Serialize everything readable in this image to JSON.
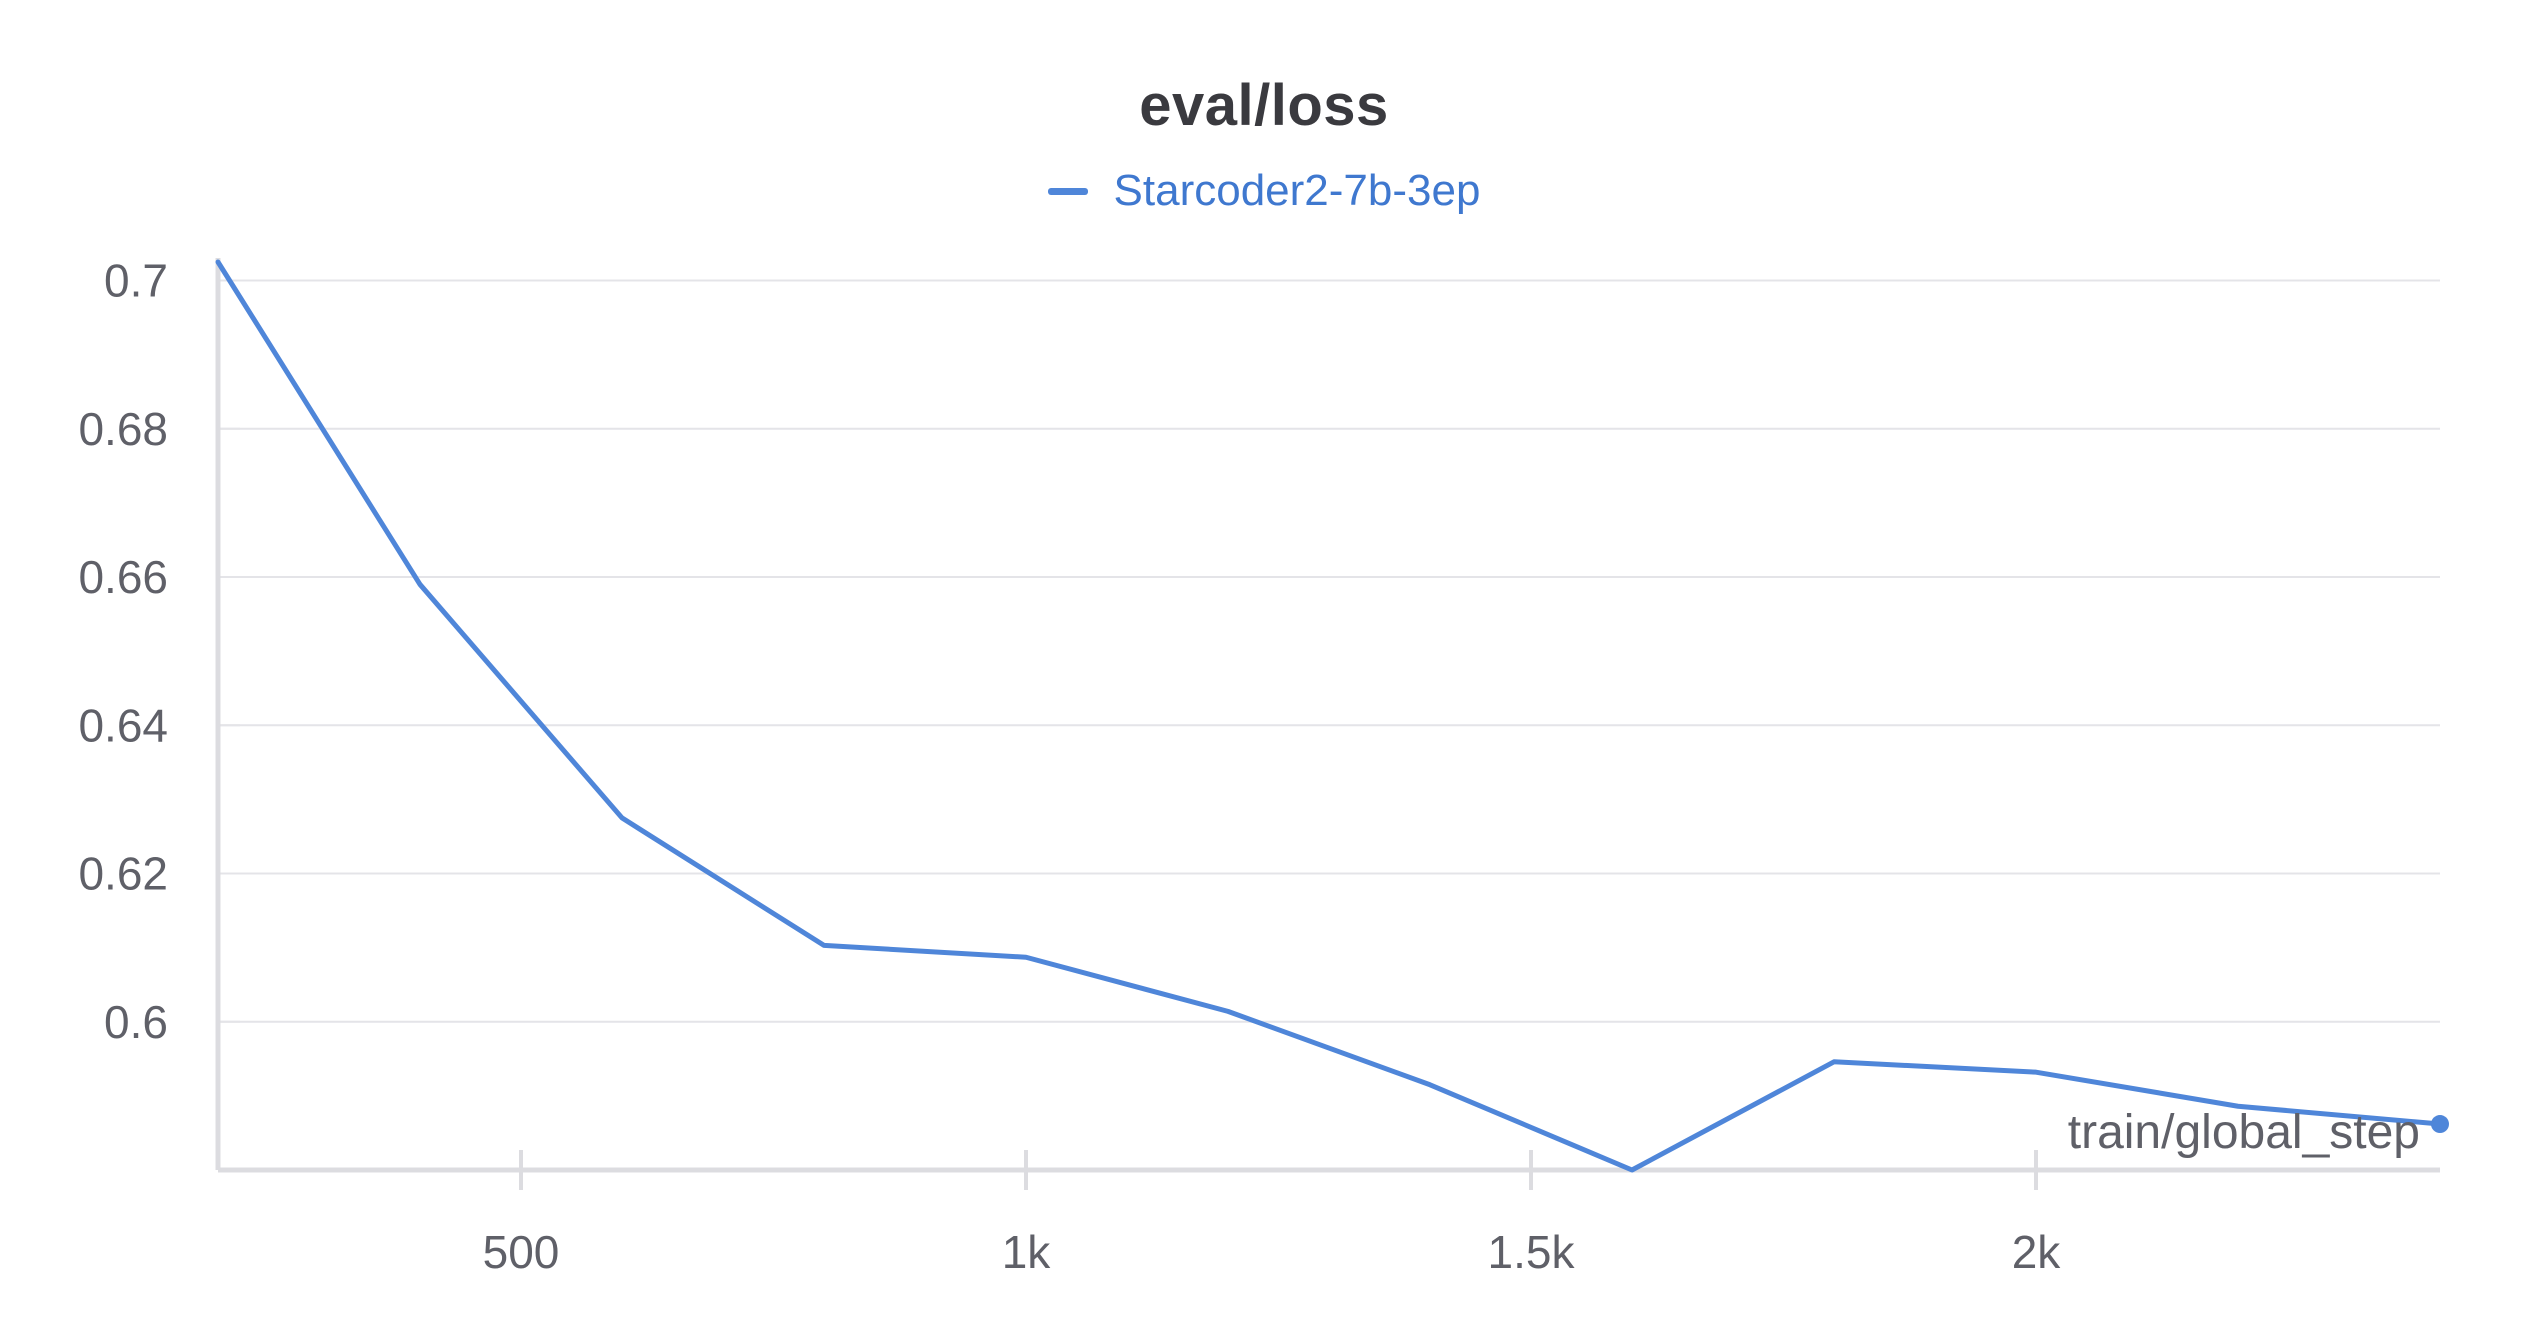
{
  "chart_data": {
    "type": "line",
    "title": "eval/loss",
    "xlabel": "train/global_step",
    "ylabel": "",
    "xlim": [
      200,
      2400
    ],
    "ylim": [
      0.58,
      0.7025
    ],
    "x_ticks": [
      500,
      1000,
      1500,
      2000
    ],
    "x_tick_labels": [
      "500",
      "1k",
      "1.5k",
      "2k"
    ],
    "y_ticks": [
      0.6,
      0.62,
      0.64,
      0.66,
      0.68,
      0.7
    ],
    "y_tick_labels": [
      "0.6",
      "0.62",
      "0.64",
      "0.66",
      "0.68",
      "0.7"
    ],
    "grid": true,
    "legend_position": "top-center",
    "series": [
      {
        "name": "Starcoder2-7b-3ep",
        "color": "#4f86d9",
        "x": [
          200,
          400,
          600,
          800,
          1000,
          1200,
          1400,
          1600,
          1800,
          2000,
          2200,
          2400
        ],
        "y": [
          0.7025,
          0.659,
          0.6275,
          0.6103,
          0.6087,
          0.6014,
          0.5915,
          0.58,
          0.5946,
          0.5932,
          0.5886,
          0.5862
        ]
      }
    ]
  }
}
